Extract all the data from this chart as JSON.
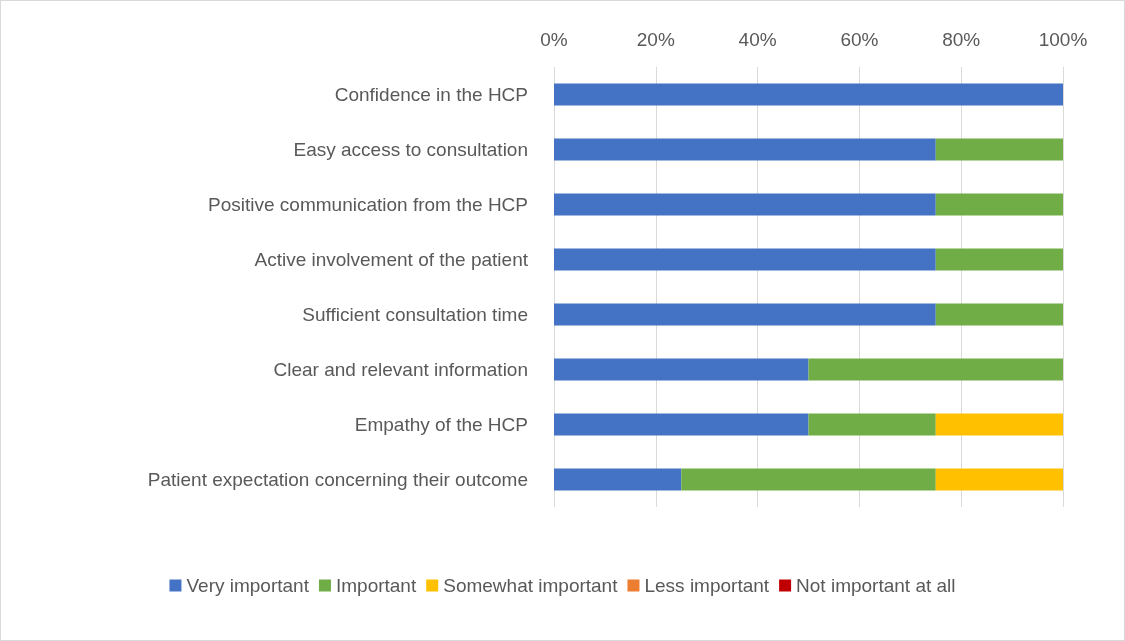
{
  "chart_data": {
    "type": "bar",
    "orientation": "horizontal",
    "stacked": true,
    "categories": [
      "Confidence in the HCP",
      "Easy access to consultation",
      "Positive communication from the HCP",
      "Active involvement of the patient",
      "Sufficient consultation time",
      "Clear and relevant information",
      "Empathy of the HCP",
      "Patient expectation concerning their outcome"
    ],
    "series": [
      {
        "name": "Very important",
        "color": "#4472c4",
        "values": [
          100,
          75,
          75,
          75,
          75,
          50,
          50,
          25
        ]
      },
      {
        "name": "Important",
        "color": "#70ad47",
        "values": [
          0,
          25,
          25,
          25,
          25,
          50,
          25,
          50
        ]
      },
      {
        "name": "Somewhat important",
        "color": "#ffc000",
        "values": [
          0,
          0,
          0,
          0,
          0,
          0,
          25,
          25
        ]
      },
      {
        "name": "Less important",
        "color": "#ed7d31",
        "values": [
          0,
          0,
          0,
          0,
          0,
          0,
          0,
          0
        ]
      },
      {
        "name": "Not important at all",
        "color": "#c00000",
        "values": [
          0,
          0,
          0,
          0,
          0,
          0,
          0,
          0
        ]
      }
    ],
    "xlim": [
      0,
      100
    ],
    "xticks": [
      {
        "value": 0,
        "label": "0%"
      },
      {
        "value": 20,
        "label": "20%"
      },
      {
        "value": 40,
        "label": "40%"
      },
      {
        "value": 60,
        "label": "60%"
      },
      {
        "value": 80,
        "label": "80%"
      },
      {
        "value": 100,
        "label": "100%"
      }
    ],
    "grid": "x",
    "legend": "bottom"
  }
}
